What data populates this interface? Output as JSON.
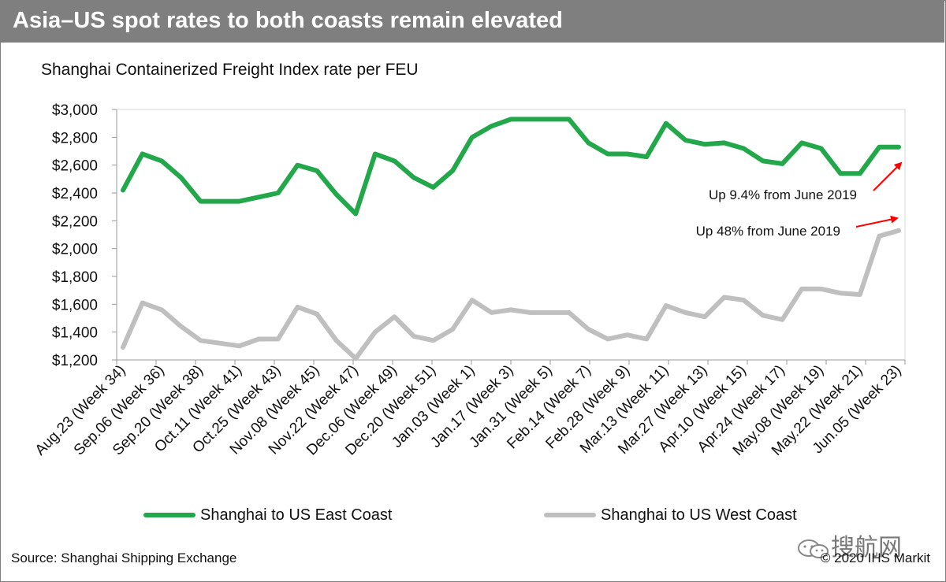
{
  "header": {
    "title": "Asia–US spot rates to both coasts remain elevated"
  },
  "footer": {
    "source": "Source: Shanghai Shipping Exchange",
    "copyright": "© 2020 IHS Markit",
    "watermark": "搜航网"
  },
  "chart_data": {
    "type": "line",
    "title": "Shanghai Containerized Freight Index rate per FEU",
    "xlabel": "",
    "ylabel": "",
    "ylim": [
      1200,
      3000
    ],
    "yticks": [
      1200,
      1400,
      1600,
      1800,
      2000,
      2200,
      2400,
      2600,
      2800,
      3000
    ],
    "ytick_labels": [
      "$1,200",
      "$1,400",
      "$1,600",
      "$1,800",
      "$2,000",
      "$2,200",
      "$2,400",
      "$2,600",
      "$2,800",
      "$3,000"
    ],
    "grid": false,
    "legend_position": "bottom",
    "tick_labels": [
      "Aug.23 (Week 34)",
      "Sep.06 (Week 36)",
      "Sep.20 (Week 38)",
      "Oct.11 (Week 41)",
      "Oct.25 (Week 43)",
      "Nov.08 (Week 45)",
      "Nov.22 (Week 47)",
      "Dec.06 (Week 49)",
      "Dec.20 (Week 51)",
      "Jan.03 (Week 1)",
      "Jan.17 (Week 3)",
      "Jan.31 (Week 5)",
      "Feb.14 (Week 7)",
      "Feb.28 (Week 9)",
      "Mar.13 (Week 11)",
      "Mar.27 (Week 13)",
      "Apr.10 (Week 15)",
      "Apr.24 (Week 17)",
      "May.08 (Week 19)",
      "May.22 (Week 21)",
      "Jun.05 (Week 23)"
    ],
    "series": [
      {
        "name": "Shanghai to US East Coast",
        "color": "#22a84a",
        "values": [
          2420,
          2680,
          2630,
          2510,
          2340,
          2340,
          2340,
          2370,
          2400,
          2600,
          2560,
          2390,
          2250,
          2680,
          2630,
          2510,
          2440,
          2560,
          2800,
          2880,
          2930,
          2930,
          2930,
          2930,
          2760,
          2680,
          2680,
          2660,
          2900,
          2780,
          2750,
          2760,
          2720,
          2630,
          2610,
          2760,
          2720,
          2540,
          2540,
          2730,
          2730
        ]
      },
      {
        "name": "Shanghai to US West Coast",
        "color": "#bfbfbf",
        "values": [
          1290,
          1610,
          1560,
          1440,
          1340,
          1320,
          1300,
          1350,
          1350,
          1580,
          1530,
          1340,
          1210,
          1400,
          1510,
          1370,
          1340,
          1420,
          1630,
          1540,
          1560,
          1540,
          1540,
          1540,
          1420,
          1350,
          1380,
          1350,
          1590,
          1540,
          1510,
          1650,
          1630,
          1520,
          1490,
          1710,
          1710,
          1680,
          1670,
          2090,
          2130
        ]
      }
    ],
    "annotations": [
      {
        "text": "Up 9.4% from June 2019",
        "series": 0
      },
      {
        "text": "Up 48% from June 2019",
        "series": 1
      }
    ]
  }
}
